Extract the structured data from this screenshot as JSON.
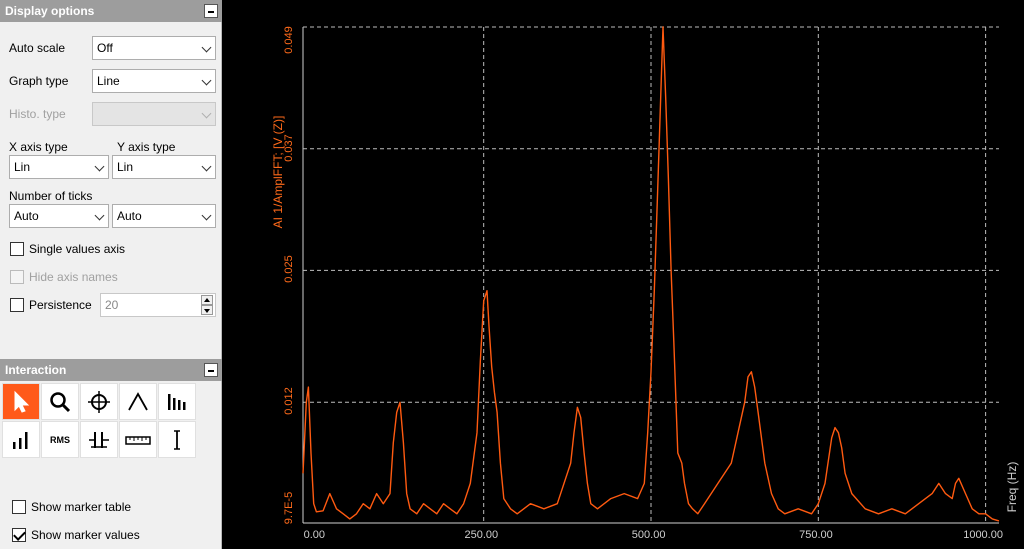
{
  "display_options": {
    "title": "Display options",
    "auto_scale_label": "Auto scale",
    "auto_scale_value": "Off",
    "graph_type_label": "Graph type",
    "graph_type_value": "Line",
    "histo_type_label": "Histo. type",
    "histo_type_value": "",
    "x_axis_type_label": "X axis type",
    "x_axis_type_value": "Lin",
    "y_axis_type_label": "Y axis type",
    "y_axis_type_value": "Lin",
    "number_of_ticks_label": "Number of ticks",
    "ticks_x_value": "Auto",
    "ticks_y_value": "Auto",
    "single_values_axis_label": "Single values axis",
    "single_values_axis_checked": false,
    "hide_axis_names_label": "Hide axis names",
    "hide_axis_names_checked": false,
    "persistence_label": "Persistence",
    "persistence_checked": false,
    "persistence_value": "20"
  },
  "interaction": {
    "title": "Interaction",
    "tools": [
      "pointer-icon",
      "zoom-icon",
      "crosshair-icon",
      "peak-icon",
      "harmonics-icon",
      "bars-icon",
      "rms-icon",
      "delta-icon",
      "ruler-icon",
      "cursor-icon"
    ],
    "rms_label": "RMS",
    "show_marker_table_label": "Show marker table",
    "show_marker_table_checked": false,
    "show_marker_values_label": "Show marker values",
    "show_marker_values_checked": true
  },
  "colors": {
    "trace": "#ff5a10",
    "active_tool": "#ff5a1a",
    "background": "#000000",
    "grid": "#bdbdbd"
  },
  "chart_data": {
    "type": "line",
    "title": "",
    "xlabel": "Freq (Hz)",
    "ylabel": "AI 1/AmplFFT; [V (Z)]",
    "xlim": [
      -20,
      1020
    ],
    "ylim": [
      9.75e-05,
      0.049
    ],
    "x_ticks": [
      "0.00",
      "250.00",
      "500.00",
      "750.00",
      "1000.00"
    ],
    "y_ticks": [
      "9.7E-5",
      "0.012",
      "0.025",
      "0.037",
      "0.049"
    ],
    "grid": true,
    "series": [
      {
        "name": "",
        "x": [
          -20,
          -15,
          -12,
          -8,
          -4,
          0,
          10,
          20,
          30,
          40,
          50,
          60,
          70,
          80,
          90,
          100,
          110,
          115,
          120,
          125,
          130,
          135,
          140,
          150,
          160,
          170,
          180,
          190,
          200,
          210,
          220,
          230,
          240,
          245,
          250,
          255,
          258,
          262,
          266,
          270,
          275,
          280,
          290,
          300,
          320,
          340,
          360,
          380,
          385,
          390,
          395,
          400,
          405,
          410,
          420,
          440,
          460,
          480,
          490,
          495,
          500,
          505,
          510,
          515,
          518,
          522,
          526,
          530,
          534,
          540,
          546,
          550,
          556,
          562,
          570,
          580,
          600,
          620,
          630,
          640,
          645,
          650,
          655,
          660,
          670,
          680,
          690,
          700,
          720,
          740,
          750,
          760,
          770,
          775,
          780,
          785,
          790,
          800,
          820,
          840,
          860,
          880,
          900,
          920,
          930,
          940,
          950,
          955,
          960,
          970,
          980,
          990,
          1000,
          1010,
          1020
        ],
        "values": [
          0.005,
          0.012,
          0.0135,
          0.007,
          0.002,
          0.0012,
          0.0013,
          0.003,
          0.0015,
          0.001,
          0.0005,
          0.001,
          0.002,
          0.0015,
          0.003,
          0.002,
          0.003,
          0.008,
          0.011,
          0.012,
          0.008,
          0.003,
          0.0015,
          0.001,
          0.002,
          0.0015,
          0.001,
          0.002,
          0.0015,
          0.001,
          0.002,
          0.004,
          0.009,
          0.016,
          0.022,
          0.023,
          0.0195,
          0.0155,
          0.013,
          0.011,
          0.006,
          0.0025,
          0.0015,
          0.001,
          0.002,
          0.0015,
          0.002,
          0.006,
          0.009,
          0.0115,
          0.0105,
          0.007,
          0.004,
          0.002,
          0.0015,
          0.0025,
          0.003,
          0.0025,
          0.004,
          0.009,
          0.015,
          0.023,
          0.033,
          0.043,
          0.049,
          0.042,
          0.034,
          0.025,
          0.018,
          0.007,
          0.006,
          0.004,
          0.002,
          0.0015,
          0.001,
          0.002,
          0.004,
          0.006,
          0.009,
          0.012,
          0.0145,
          0.015,
          0.0135,
          0.011,
          0.006,
          0.003,
          0.0015,
          0.001,
          0.0015,
          0.001,
          0.002,
          0.004,
          0.0085,
          0.0095,
          0.009,
          0.0075,
          0.005,
          0.003,
          0.0015,
          0.001,
          0.0015,
          0.001,
          0.002,
          0.003,
          0.004,
          0.003,
          0.0025,
          0.004,
          0.0045,
          0.003,
          0.0015,
          0.001,
          0.001,
          0.0005,
          0.0003
        ]
      }
    ]
  }
}
